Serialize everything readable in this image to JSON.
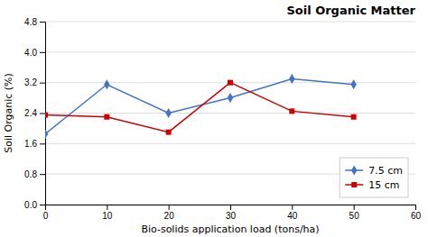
{
  "chart_data": {
    "type": "line",
    "title": "Soil Organic Matter",
    "xlabel": "Bio-solids application load (tons/ha)",
    "ylabel": "Soil Organic (%)",
    "x": [
      0,
      10,
      20,
      30,
      40,
      50
    ],
    "series": [
      {
        "name": "7.5 cm",
        "color": "#4472C4",
        "marker": "diamond",
        "values": [
          1.85,
          3.15,
          2.4,
          2.8,
          3.3,
          3.15
        ]
      },
      {
        "name": "15 cm",
        "color": "#CC0000",
        "marker": "square",
        "values": [
          2.35,
          2.3,
          1.9,
          3.2,
          2.45,
          2.3
        ]
      }
    ],
    "xlim": [
      0,
      60
    ],
    "xticks": [
      0,
      10,
      20,
      30,
      40,
      50,
      60
    ],
    "ylim": [
      0.0,
      4.8
    ],
    "yticks": [
      {
        "value": 0.0,
        "label": "0.0"
      },
      0.8,
      1.6,
      2.4,
      3.2,
      {
        "value": 4.0,
        "label": "4.0"
      },
      4.8
    ],
    "grid": true,
    "legend": "lower right"
  }
}
